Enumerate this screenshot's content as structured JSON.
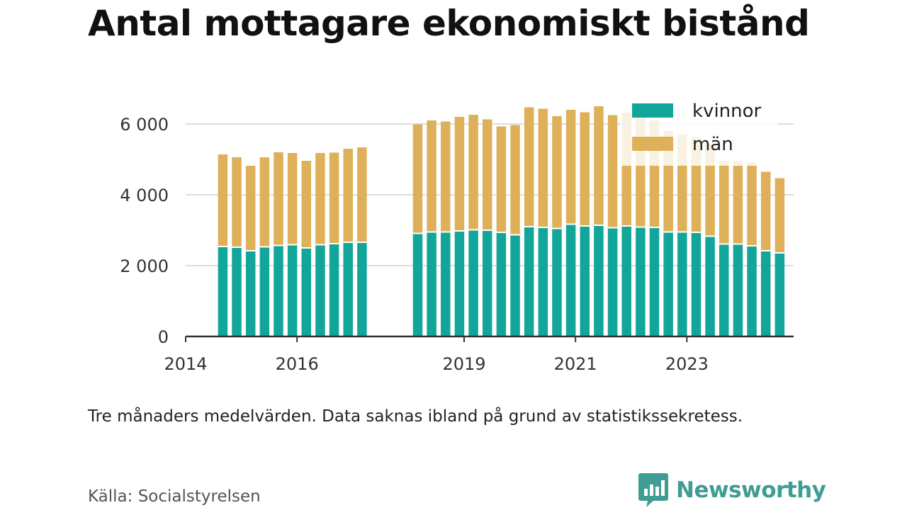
{
  "title": "Antal mottagare ekonomiskt bistånd",
  "note": "Tre månaders medelvärden. Data saknas ibland på grund av statistikssekretess.",
  "source": "Källa: Socialstyrelsen",
  "brand": {
    "name": "Newsworthy",
    "icon": "newsworthy-logo-icon",
    "color": "#3f9d94"
  },
  "chart_data": {
    "type": "bar",
    "stacked": true,
    "series": [
      {
        "name": "kvinnor",
        "color": "#12a59a"
      },
      {
        "name": "män",
        "color": "#deb05a"
      }
    ],
    "ylim": [
      0,
      6500
    ],
    "yticks": [
      0,
      2000,
      4000,
      6000
    ],
    "ytick_labels": [
      "0",
      "2 000",
      "4 000",
      "6 000"
    ],
    "xlim": [
      "2014-01",
      "2024-12"
    ],
    "xticks": [
      "2014-01",
      "2016-01",
      "2019-01",
      "2021-01",
      "2023-01"
    ],
    "xtick_labels": [
      "2014",
      "2016",
      "2019",
      "2021",
      "2023"
    ],
    "grid": true,
    "legend": "top-right",
    "bars": [
      {
        "period": "2014-09",
        "kvinnor": 2520,
        "män": 2620
      },
      {
        "period": "2014-12",
        "kvinnor": 2500,
        "män": 2560
      },
      {
        "period": "2015-03",
        "kvinnor": 2400,
        "män": 2420
      },
      {
        "period": "2015-06",
        "kvinnor": 2510,
        "män": 2550
      },
      {
        "period": "2015-09",
        "kvinnor": 2550,
        "män": 2650
      },
      {
        "period": "2015-12",
        "kvinnor": 2570,
        "män": 2610
      },
      {
        "period": "2016-03",
        "kvinnor": 2480,
        "män": 2480
      },
      {
        "period": "2016-06",
        "kvinnor": 2570,
        "män": 2610
      },
      {
        "period": "2016-09",
        "kvinnor": 2600,
        "män": 2590
      },
      {
        "period": "2016-12",
        "kvinnor": 2640,
        "män": 2660
      },
      {
        "period": "2017-03",
        "kvinnor": 2640,
        "män": 2700
      },
      {
        "period": "2018-03",
        "kvinnor": 2890,
        "män": 3100
      },
      {
        "period": "2018-06",
        "kvinnor": 2930,
        "män": 3170
      },
      {
        "period": "2018-09",
        "kvinnor": 2930,
        "män": 3140
      },
      {
        "period": "2018-12",
        "kvinnor": 2960,
        "män": 3240
      },
      {
        "period": "2019-03",
        "kvinnor": 2990,
        "män": 3270
      },
      {
        "period": "2019-06",
        "kvinnor": 2980,
        "män": 3150
      },
      {
        "period": "2019-09",
        "kvinnor": 2920,
        "män": 3010
      },
      {
        "period": "2019-12",
        "kvinnor": 2850,
        "män": 3120
      },
      {
        "period": "2020-03",
        "kvinnor": 3080,
        "män": 3390
      },
      {
        "period": "2020-06",
        "kvinnor": 3060,
        "män": 3370
      },
      {
        "period": "2020-09",
        "kvinnor": 3030,
        "män": 3190
      },
      {
        "period": "2020-12",
        "kvinnor": 3150,
        "män": 3250
      },
      {
        "period": "2021-03",
        "kvinnor": 3100,
        "män": 3230
      },
      {
        "period": "2021-06",
        "kvinnor": 3120,
        "män": 3380
      },
      {
        "period": "2021-09",
        "kvinnor": 3050,
        "män": 3200
      },
      {
        "period": "2021-12",
        "kvinnor": 3100,
        "män": 3220
      },
      {
        "period": "2022-03",
        "kvinnor": 3070,
        "män": 3150
      },
      {
        "period": "2022-06",
        "kvinnor": 3060,
        "män": 3040
      },
      {
        "period": "2022-09",
        "kvinnor": 2930,
        "män": 2870
      },
      {
        "period": "2022-12",
        "kvinnor": 2930,
        "män": 2780
      },
      {
        "period": "2023-03",
        "kvinnor": 2920,
        "män": 2700
      },
      {
        "period": "2023-06",
        "kvinnor": 2810,
        "män": 2620
      },
      {
        "period": "2023-09",
        "kvinnor": 2590,
        "män": 2370
      },
      {
        "period": "2023-12",
        "kvinnor": 2590,
        "män": 2370
      },
      {
        "period": "2024-03",
        "kvinnor": 2540,
        "män": 2370
      },
      {
        "period": "2024-06",
        "kvinnor": 2400,
        "män": 2250
      },
      {
        "period": "2024-09",
        "kvinnor": 2340,
        "män": 2130
      }
    ]
  }
}
